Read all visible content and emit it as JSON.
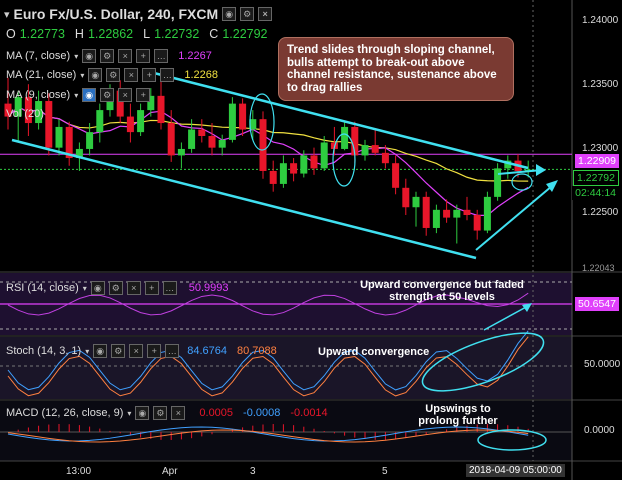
{
  "header": {
    "symbol": "Euro Fx/U.S. Dollar, 240, FXCM",
    "ohlc": {
      "O_label": "O",
      "O": "1.22773",
      "H_label": "H",
      "H": "1.22862",
      "L_label": "L",
      "L": "1.22732",
      "C_label": "C",
      "C": "1.22792"
    }
  },
  "indicators": {
    "ma7": {
      "label": "MA (7, close)",
      "value": "1.2267",
      "color": "#e040fb"
    },
    "ma21": {
      "label": "MA (21, close)",
      "value": "1.2268",
      "color": "#f0e040"
    },
    "ma9": {
      "label": "MA (9, close)",
      "color": "#40a0ff"
    },
    "vol": {
      "label": "Vol (20)"
    }
  },
  "price_axis": {
    "ticks": [
      "1.24000",
      "1.23500",
      "1.23000",
      "1.22500"
    ],
    "labels": {
      "resistance": "1.22909",
      "current": "1.22792",
      "countdown": "02:44:14",
      "last_low": "1.22043"
    }
  },
  "callout": {
    "text": "Trend slides through sloping channel, bulls attempt to break-out above channel resistance, sustenance above to drag rallies"
  },
  "rsi": {
    "label": "RSI (14, close)",
    "value": "50.9993",
    "axis_value": "50.6547",
    "note": "Upward convergence but faded strength at 50 levels"
  },
  "stoch": {
    "label": "Stoch (14, 3, 1)",
    "k": "84.6764",
    "d": "80.7088",
    "axis_value": "50.0000",
    "note": "Upward convergence"
  },
  "macd": {
    "label": "MACD (12, 26, close, 9)",
    "v1": "0.0005",
    "v2": "-0.0008",
    "v3": "-0.0014",
    "axis_value": "0.0000",
    "note": "Upswings to prolong further"
  },
  "time_axis": {
    "labels": [
      "13:00",
      "Apr",
      "3",
      "5"
    ],
    "current": "2018-04-09 05:00:00"
  },
  "colors": {
    "up": "#2ecc40",
    "down": "#e8162a",
    "channel": "#40e0f0",
    "callout_bg": "#7a3a32",
    "resistance": "#e040fb"
  },
  "chart_data": {
    "type": "candlestick",
    "title": "Euro Fx/U.S. Dollar, 240, FXCM",
    "xlabel": "",
    "ylabel": "",
    "x": [
      "13:00",
      "Apr",
      "3",
      "5"
    ],
    "ylim": [
      1.22,
      1.241
    ],
    "candles": [
      [
        1.233,
        1.235,
        1.231,
        1.232
      ],
      [
        1.232,
        1.234,
        1.23,
        1.2335
      ],
      [
        1.2335,
        1.2345,
        1.2305,
        1.2315
      ],
      [
        1.2315,
        1.234,
        1.231,
        1.2332
      ],
      [
        1.2332,
        1.2338,
        1.229,
        1.2296
      ],
      [
        1.2296,
        1.2318,
        1.229,
        1.2312
      ],
      [
        1.2312,
        1.2316,
        1.2282,
        1.2288
      ],
      [
        1.2288,
        1.23,
        1.2278,
        1.2295
      ],
      [
        1.2295,
        1.2315,
        1.229,
        1.2308
      ],
      [
        1.2308,
        1.233,
        1.23,
        1.2325
      ],
      [
        1.2325,
        1.2345,
        1.232,
        1.234
      ],
      [
        1.234,
        1.2348,
        1.2315,
        1.232
      ],
      [
        1.232,
        1.233,
        1.23,
        1.2308
      ],
      [
        1.2308,
        1.233,
        1.2305,
        1.2325
      ],
      [
        1.2325,
        1.2342,
        1.232,
        1.2336
      ],
      [
        1.2336,
        1.2348,
        1.231,
        1.2315
      ],
      [
        1.2315,
        1.2325,
        1.2285,
        1.229
      ],
      [
        1.229,
        1.23,
        1.228,
        1.2295
      ],
      [
        1.2295,
        1.2318,
        1.2292,
        1.231
      ],
      [
        1.231,
        1.2318,
        1.23,
        1.2305
      ],
      [
        1.2305,
        1.2315,
        1.229,
        1.2296
      ],
      [
        1.2296,
        1.2306,
        1.229,
        1.2302
      ],
      [
        1.2302,
        1.2335,
        1.23,
        1.233
      ],
      [
        1.233,
        1.2334,
        1.2305,
        1.231
      ],
      [
        1.231,
        1.2325,
        1.2302,
        1.2318
      ],
      [
        1.2318,
        1.2324,
        1.2272,
        1.2278
      ],
      [
        1.2278,
        1.2286,
        1.2262,
        1.2268
      ],
      [
        1.2268,
        1.229,
        1.2265,
        1.2284
      ],
      [
        1.2284,
        1.2288,
        1.227,
        1.2276
      ],
      [
        1.2276,
        1.2294,
        1.2273,
        1.229
      ],
      [
        1.229,
        1.2296,
        1.2275,
        1.228
      ],
      [
        1.228,
        1.2305,
        1.2278,
        1.23
      ],
      [
        1.23,
        1.2312,
        1.229,
        1.2295
      ],
      [
        1.2295,
        1.2316,
        1.2294,
        1.2312
      ],
      [
        1.2312,
        1.2316,
        1.2284,
        1.229
      ],
      [
        1.229,
        1.2302,
        1.2286,
        1.2298
      ],
      [
        1.2298,
        1.231,
        1.229,
        1.2292
      ],
      [
        1.2292,
        1.2298,
        1.228,
        1.2284
      ],
      [
        1.2284,
        1.229,
        1.226,
        1.2265
      ],
      [
        1.2265,
        1.2272,
        1.2244,
        1.225
      ],
      [
        1.225,
        1.2262,
        1.2235,
        1.2258
      ],
      [
        1.2258,
        1.2262,
        1.2228,
        1.2234
      ],
      [
        1.2234,
        1.2252,
        1.223,
        1.2248
      ],
      [
        1.2248,
        1.2256,
        1.2238,
        1.2242
      ],
      [
        1.2242,
        1.2252,
        1.2222,
        1.2248
      ],
      [
        1.2248,
        1.2258,
        1.224,
        1.2244
      ],
      [
        1.2244,
        1.2248,
        1.2225,
        1.2232
      ],
      [
        1.2232,
        1.2262,
        1.223,
        1.2258
      ],
      [
        1.2258,
        1.2284,
        1.2255,
        1.228
      ],
      [
        1.228,
        1.229,
        1.2272,
        1.2286
      ],
      [
        1.2286,
        1.2291,
        1.2273,
        1.2278
      ],
      [
        1.2278,
        1.2286,
        1.2273,
        1.2279
      ]
    ]
  }
}
